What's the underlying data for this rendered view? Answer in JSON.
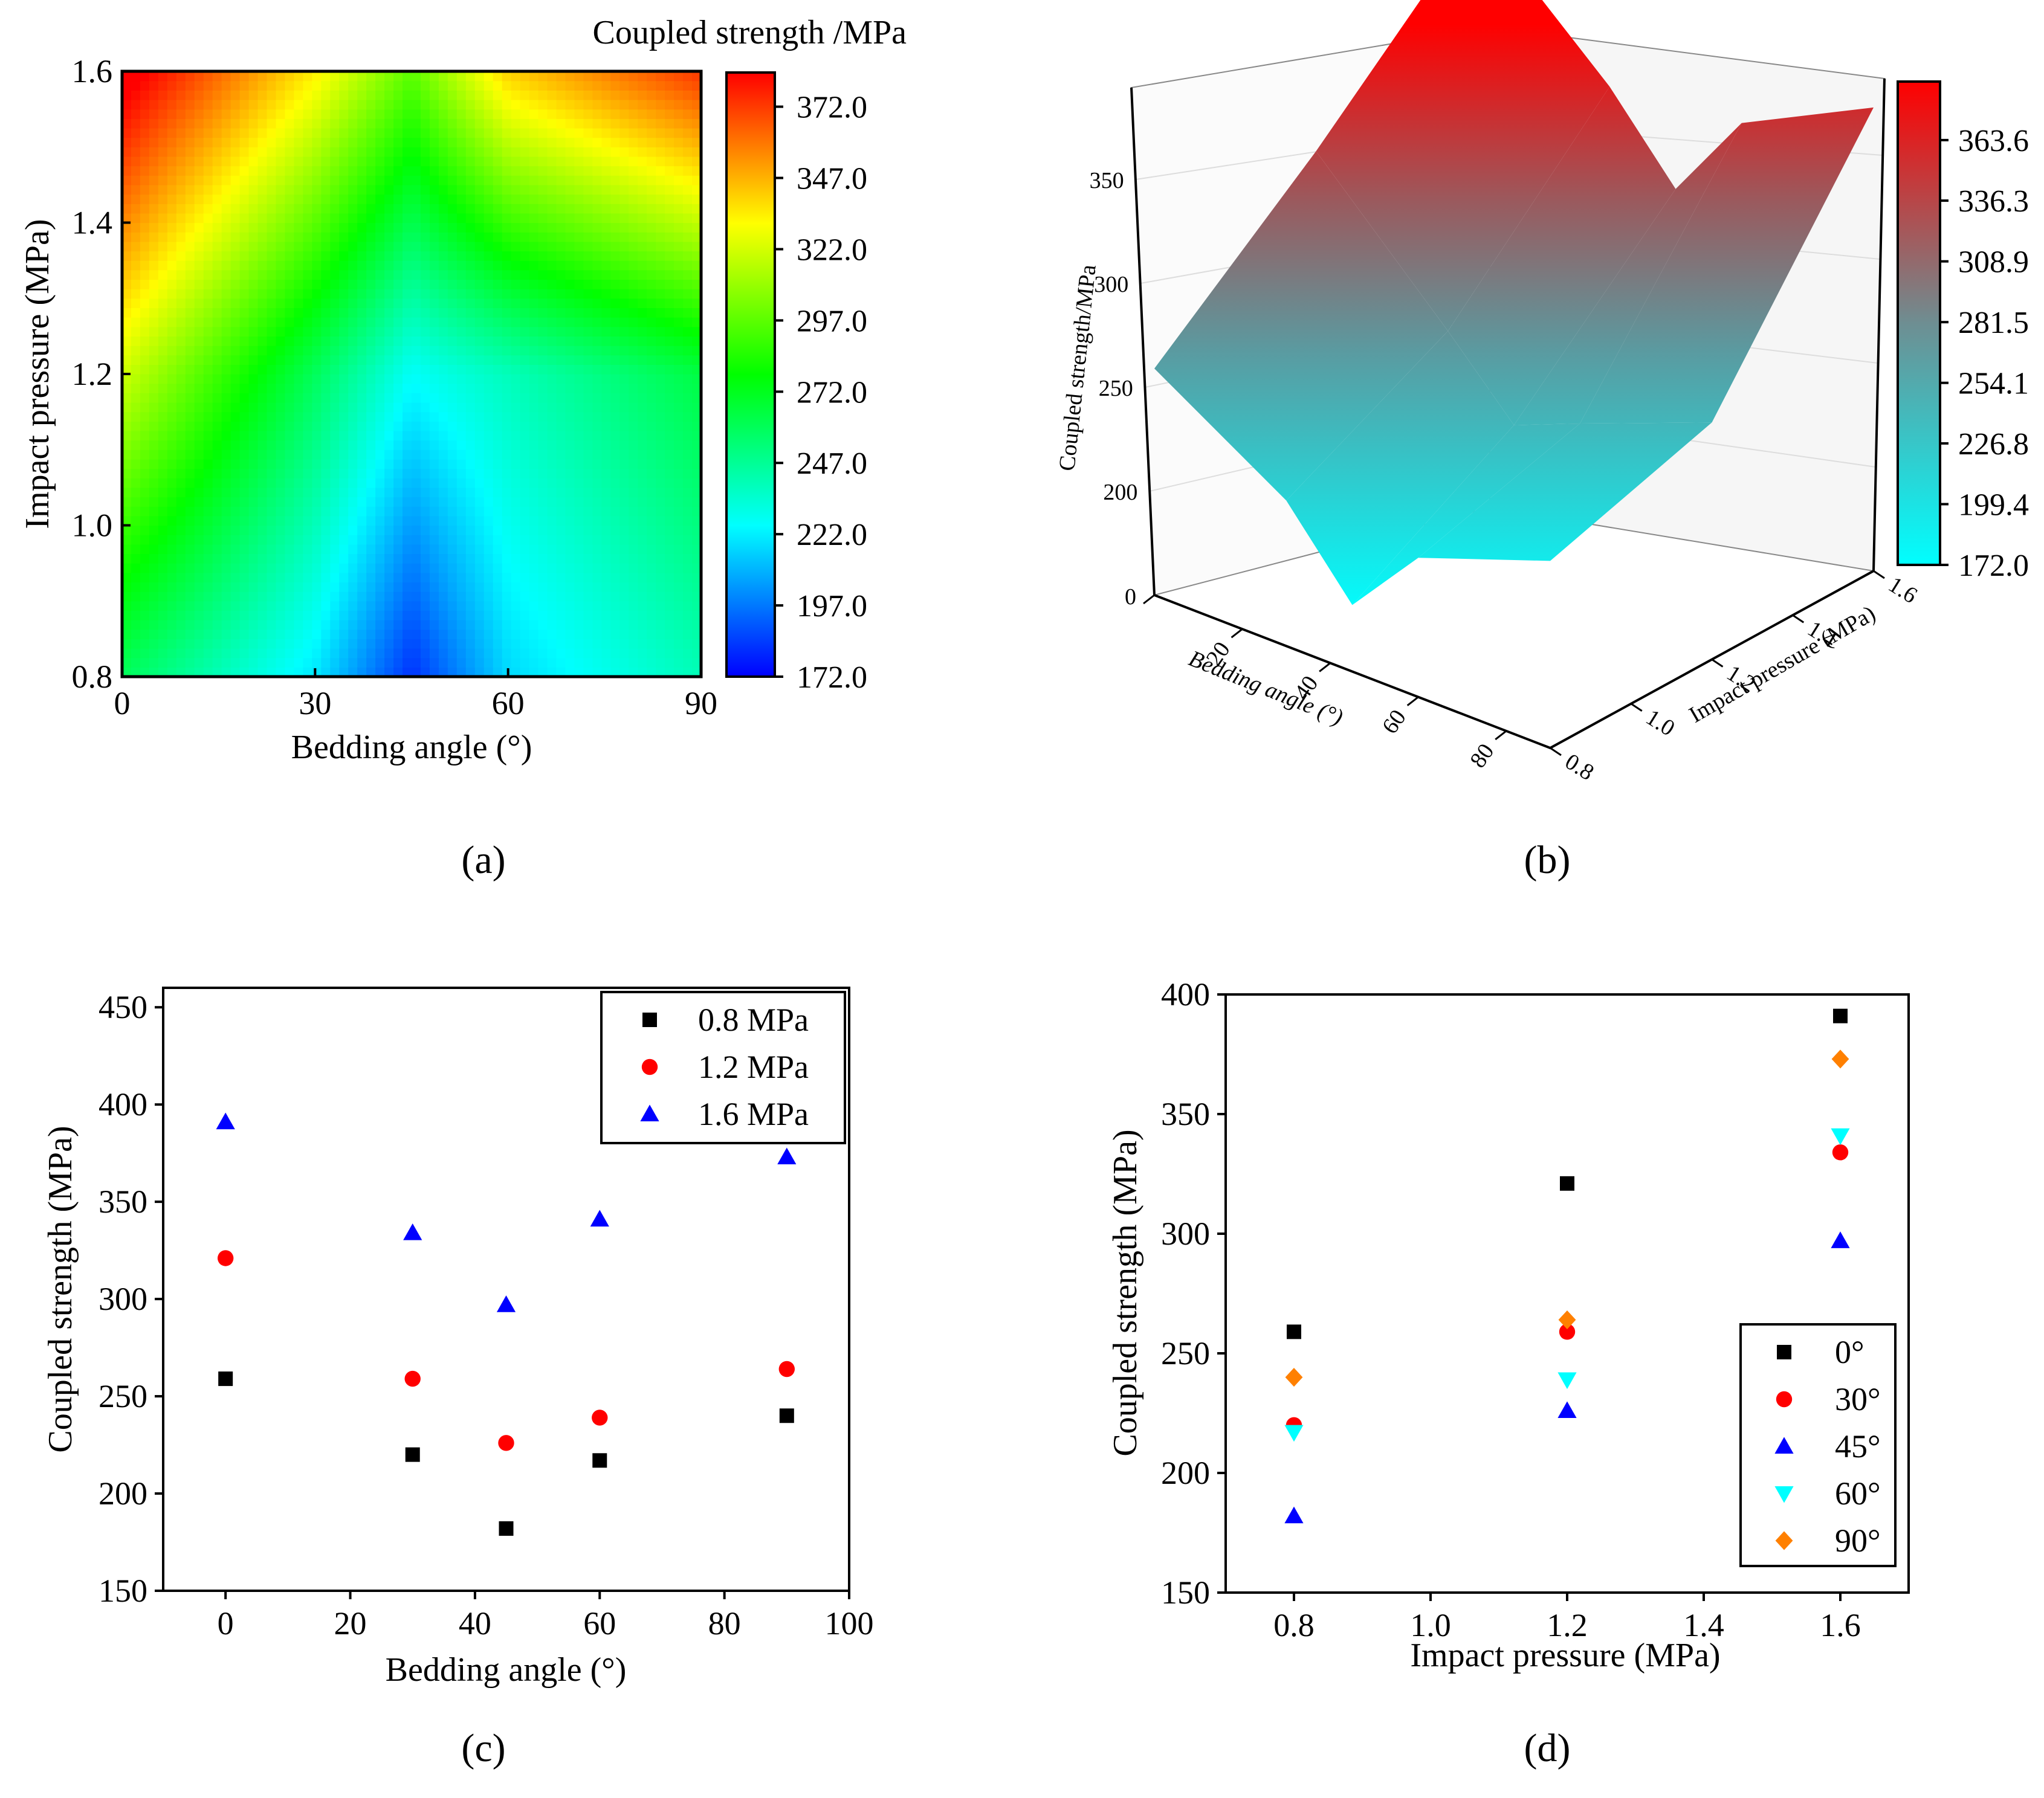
{
  "figure": {
    "panel_labels": [
      "(a)",
      "(b)",
      "(c)",
      "(d)"
    ]
  },
  "chart_data": [
    {
      "id": "a",
      "type": "heatmap",
      "title": "Coupled strength /MPa",
      "xlabel": "Bedding angle (°)",
      "ylabel": "Impact pressure (MPa)",
      "x_ticks": [
        "0",
        "30",
        "60",
        "90"
      ],
      "y_ticks": [
        "0.8",
        "1.0",
        "1.2",
        "1.4",
        "1.6"
      ],
      "xlim": [
        0,
        90
      ],
      "ylim": [
        0.8,
        1.6
      ],
      "colorbar_ticks": [
        "172.0",
        "197.0",
        "222.0",
        "247.0",
        "272.0",
        "297.0",
        "322.0",
        "347.0",
        "372.0"
      ],
      "colorbar_range": [
        172.0,
        384.0
      ],
      "colormap": [
        "#0000ff",
        "#00ffff",
        "#00ff00",
        "#ffff00",
        "#ff0000"
      ],
      "grid_x": [
        0,
        30,
        45,
        60,
        90
      ],
      "grid_y": [
        0.8,
        1.2,
        1.6
      ],
      "z": [
        [
          259,
          220,
          182,
          217,
          240
        ],
        [
          321,
          259,
          226,
          239,
          264
        ],
        [
          391,
          334,
          297,
          341,
          373
        ]
      ]
    },
    {
      "id": "b",
      "type": "surface",
      "zlabel": "Coupled strength/MPa",
      "xlabel": "Bedding angle (°)",
      "ylabel": "Impact pressure (MPa)",
      "z_ticks": [
        "200",
        "250",
        "300",
        "350"
      ],
      "x_ticks": [
        "0",
        "20",
        "40",
        "60",
        "80"
      ],
      "y_ticks": [
        "0.8",
        "1.0",
        "1.2",
        "1.4",
        "1.6"
      ],
      "colorbar_ticks": [
        "172.0",
        "199.4",
        "226.8",
        "254.1",
        "281.5",
        "308.9",
        "336.3",
        "363.6"
      ],
      "colormap": [
        "#00ffff",
        "#ff0000"
      ],
      "grid_x": [
        0,
        30,
        45,
        60,
        90
      ],
      "grid_y": [
        0.8,
        1.2,
        1.6
      ],
      "z": [
        [
          259,
          220,
          182,
          217,
          240
        ],
        [
          321,
          259,
          226,
          239,
          264
        ],
        [
          391,
          334,
          297,
          341,
          373
        ]
      ]
    },
    {
      "id": "c",
      "type": "scatter",
      "xlabel": "Bedding angle (°)",
      "ylabel": "Coupled strength (MPa)",
      "xlim": [
        -10,
        100
      ],
      "ylim": [
        150,
        460
      ],
      "x_ticks": [
        "0",
        "20",
        "40",
        "60",
        "80",
        "100"
      ],
      "y_ticks": [
        "150",
        "200",
        "250",
        "300",
        "350",
        "400",
        "450"
      ],
      "legend_position": "top-right",
      "series": [
        {
          "name": "0.8 MPa",
          "marker": "square",
          "color": "#000000",
          "x": [
            0,
            30,
            45,
            60,
            90
          ],
          "y": [
            259,
            220,
            182,
            217,
            240
          ]
        },
        {
          "name": "1.2 MPa",
          "marker": "circle",
          "color": "#ff0000",
          "x": [
            0,
            30,
            45,
            60,
            90
          ],
          "y": [
            321,
            259,
            226,
            239,
            264
          ]
        },
        {
          "name": "1.6 MPa",
          "marker": "triangle-up",
          "color": "#0000ff",
          "x": [
            0,
            30,
            45,
            60,
            90
          ],
          "y": [
            391,
            334,
            297,
            341,
            373
          ]
        }
      ]
    },
    {
      "id": "d",
      "type": "scatter",
      "xlabel": "Impact pressure (MPa)",
      "ylabel": "Coupled strength (MPa)",
      "xlim": [
        0.7,
        1.7
      ],
      "ylim": [
        150,
        400
      ],
      "x_ticks": [
        "0.8",
        "1.0",
        "1.2",
        "1.4",
        "1.6"
      ],
      "y_ticks": [
        "150",
        "200",
        "250",
        "300",
        "350",
        "400"
      ],
      "legend_position": "bottom-right",
      "series": [
        {
          "name": "0°",
          "marker": "square",
          "color": "#000000",
          "x": [
            0.8,
            1.2,
            1.6
          ],
          "y": [
            259,
            321,
            391
          ]
        },
        {
          "name": "30°",
          "marker": "circle",
          "color": "#ff0000",
          "x": [
            0.8,
            1.2,
            1.6
          ],
          "y": [
            220,
            259,
            334
          ]
        },
        {
          "name": "45°",
          "marker": "triangle-up",
          "color": "#0000ff",
          "x": [
            0.8,
            1.2,
            1.6
          ],
          "y": [
            182,
            226,
            297
          ]
        },
        {
          "name": "60°",
          "marker": "triangle-down",
          "color": "#00ffff",
          "x": [
            0.8,
            1.2,
            1.6
          ],
          "y": [
            217,
            239,
            341
          ]
        },
        {
          "name": "90°",
          "marker": "diamond",
          "color": "#ff8000",
          "x": [
            0.8,
            1.2,
            1.6
          ],
          "y": [
            240,
            264,
            373
          ]
        }
      ]
    }
  ]
}
